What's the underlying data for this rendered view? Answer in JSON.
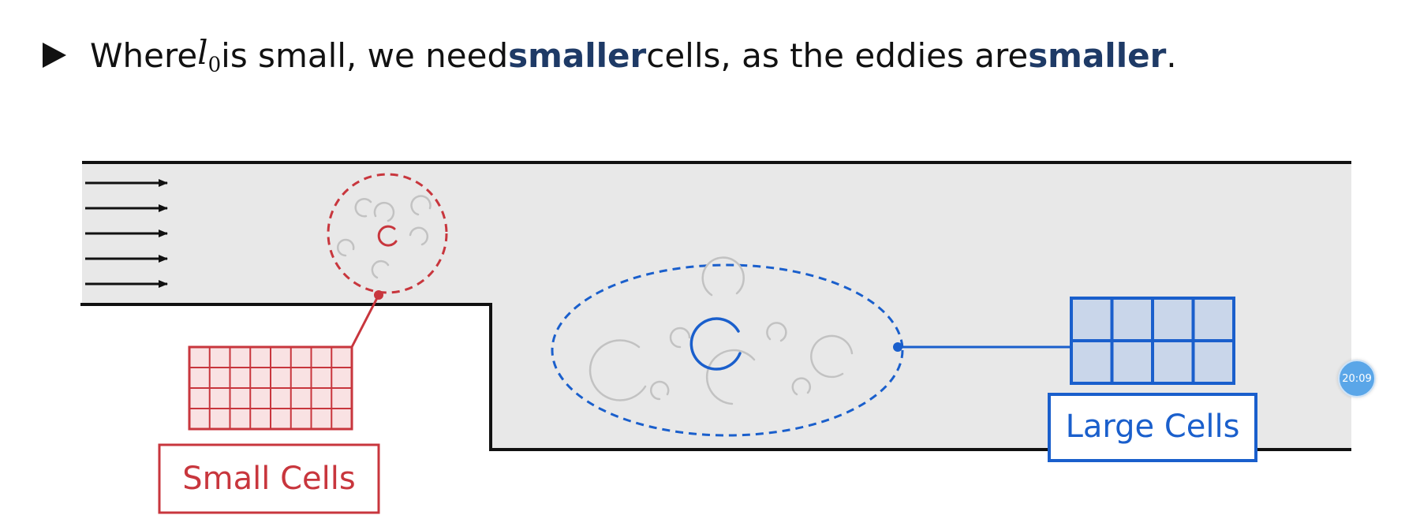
{
  "bullet": {
    "part1": "Where ",
    "math_var": "l",
    "math_sub": "0",
    "part2": " is small, we need ",
    "em1": "smaller",
    "part3": " cells, as the eddies are ",
    "em2": "smaller",
    "part4": "."
  },
  "labels": {
    "small_cells": "Small Cells",
    "large_cells": "Large Cells"
  },
  "timer": {
    "text": "20:09"
  },
  "colors": {
    "red": "#c8363d",
    "blue": "#1a5fcc",
    "fluid": "#e8e8e8",
    "wall": "#111111",
    "eddy": "#c2c2c2"
  }
}
